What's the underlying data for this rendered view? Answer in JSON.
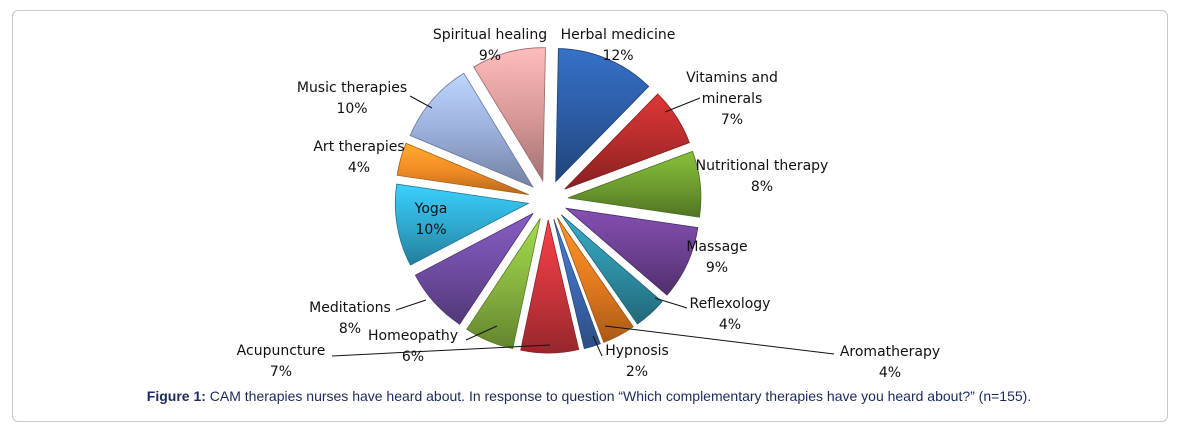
{
  "chart_data": {
    "type": "pie",
    "slices": [
      {
        "label": "Herbal medicine",
        "value": 12,
        "display": "12%",
        "color": "#2b5aa1"
      },
      {
        "label": "Vitamins and minerals",
        "display_lines": [
          "Vitamins and",
          "minerals"
        ],
        "value": 7,
        "display": "7%",
        "color": "#b22b2b"
      },
      {
        "label": "Nutritional therapy",
        "value": 8,
        "display": "8%",
        "color": "#6c9a2f"
      },
      {
        "label": "Massage",
        "value": 9,
        "display": "9%",
        "color": "#6a3f8f"
      },
      {
        "label": "Reflexology",
        "value": 4,
        "display": "4%",
        "color": "#2c8aa0"
      },
      {
        "label": "Aromatherapy",
        "value": 4,
        "display": "4%",
        "color": "#e0781e"
      },
      {
        "label": "Hypnosis",
        "value": 2,
        "display": "2%",
        "color": "#3b67b0"
      },
      {
        "label": "Acupuncture",
        "value": 7,
        "display": "7%",
        "color": "#c8343a"
      },
      {
        "label": "Homeopathy",
        "value": 6,
        "display": "6%",
        "color": "#84b03e"
      },
      {
        "label": "Meditations",
        "value": 8,
        "display": "8%",
        "color": "#6c4a9e"
      },
      {
        "label": "Yoga",
        "value": 10,
        "display": "10%",
        "color": "#2fa6cc"
      },
      {
        "label": "Art therapies",
        "value": 4,
        "display": "4%",
        "color": "#f08a24"
      },
      {
        "label": "Music therapies",
        "value": 10,
        "display": "10%",
        "color": "#98acd8"
      },
      {
        "label": "Spiritual healing",
        "value": 9,
        "display": "9%",
        "color": "#d69696"
      }
    ]
  },
  "caption": {
    "prefix": "Figure 1:",
    "text": " CAM therapies nurses have heard about. In response to question “Which complementary therapies have you heard about?” (n=155)."
  }
}
